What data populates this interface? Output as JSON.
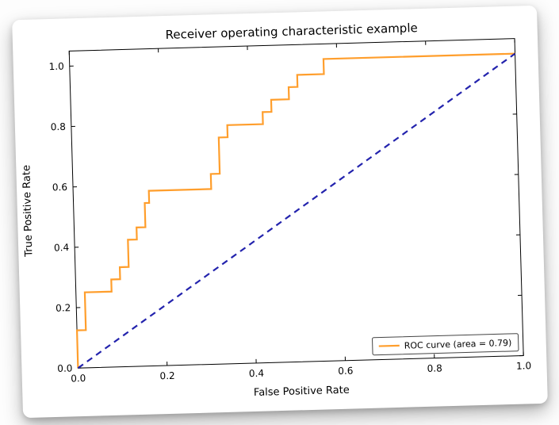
{
  "chart_data": {
    "type": "line",
    "title": "Receiver operating characteristic example",
    "xlabel": "False Positive Rate",
    "ylabel": "True Positive Rate",
    "xlim": [
      0.0,
      1.0
    ],
    "ylim": [
      0.0,
      1.05
    ],
    "xticks": [
      "0.0",
      "0.2",
      "0.4",
      "0.6",
      "0.8",
      "1.0"
    ],
    "yticks": [
      "0.0",
      "0.2",
      "0.4",
      "0.6",
      "0.8",
      "1.0"
    ],
    "grid": false,
    "legend": {
      "label": "ROC curve (area = 0.79)",
      "position": "lower right"
    },
    "frame_color": "#000000",
    "series": [
      {
        "id": "roc-curve-line",
        "name": "ROC curve (area = 0.79)",
        "color": "#ff9e2c",
        "style": "solid",
        "points": [
          [
            0.0,
            0.0
          ],
          [
            0.0,
            0.125
          ],
          [
            0.02,
            0.125
          ],
          [
            0.02,
            0.25
          ],
          [
            0.08,
            0.25
          ],
          [
            0.08,
            0.29
          ],
          [
            0.1,
            0.29
          ],
          [
            0.1,
            0.33
          ],
          [
            0.12,
            0.33
          ],
          [
            0.12,
            0.42
          ],
          [
            0.14,
            0.42
          ],
          [
            0.14,
            0.46
          ],
          [
            0.16,
            0.46
          ],
          [
            0.16,
            0.54
          ],
          [
            0.17,
            0.54
          ],
          [
            0.17,
            0.58
          ],
          [
            0.31,
            0.58
          ],
          [
            0.31,
            0.63
          ],
          [
            0.33,
            0.63
          ],
          [
            0.33,
            0.75
          ],
          [
            0.35,
            0.75
          ],
          [
            0.35,
            0.79
          ],
          [
            0.43,
            0.79
          ],
          [
            0.43,
            0.83
          ],
          [
            0.45,
            0.83
          ],
          [
            0.45,
            0.87
          ],
          [
            0.49,
            0.87
          ],
          [
            0.49,
            0.91
          ],
          [
            0.51,
            0.91
          ],
          [
            0.51,
            0.95
          ],
          [
            0.57,
            0.95
          ],
          [
            0.57,
            1.0
          ],
          [
            1.0,
            1.0
          ]
        ]
      },
      {
        "id": "chance-diagonal-line",
        "name": "",
        "color": "#2323ad",
        "style": "dashed",
        "points": [
          [
            0.0,
            0.0
          ],
          [
            1.0,
            1.0
          ]
        ]
      }
    ]
  }
}
